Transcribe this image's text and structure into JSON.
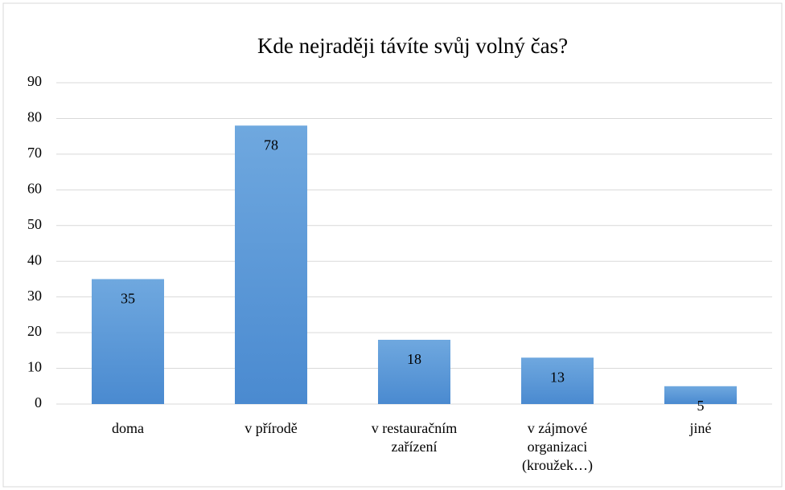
{
  "chart_data": {
    "type": "bar",
    "title": "Kde nejraději távíte svůj volný čas?",
    "categories": [
      "doma",
      "v přírodě",
      "v restauračním zařízení",
      "v zájmové organizaci (kroužek…)",
      "jiné"
    ],
    "values": [
      35,
      78,
      18,
      13,
      5
    ],
    "color": "#5b9bd5",
    "ylim": [
      0,
      90
    ],
    "yticks": [
      0,
      10,
      20,
      30,
      40,
      50,
      60,
      70,
      80,
      90
    ],
    "grid": true
  }
}
